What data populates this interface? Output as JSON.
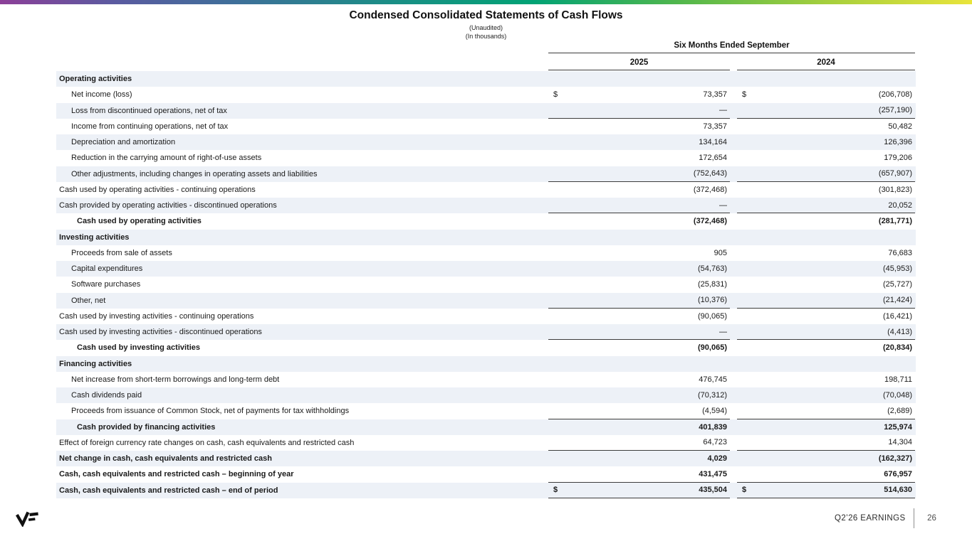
{
  "slide": {
    "title": "Condensed Consolidated Statements of Cash Flows",
    "subtitle_unaudited": "(Unaudited)",
    "subtitle_thousands": "(In thousands)"
  },
  "table": {
    "period_header": "Six Months Ended September",
    "col_years": [
      "2025",
      "2024"
    ],
    "rows": [
      {
        "label": "Operating activities",
        "indent": 0,
        "bold": true,
        "shaded": true,
        "v1": "",
        "v2": ""
      },
      {
        "label": "Net income (loss)",
        "indent": 1,
        "d1": "$",
        "v1": "73,357",
        "d2": "$",
        "v2": "(206,708)"
      },
      {
        "label": "Loss from discontinued operations, net of tax",
        "indent": 1,
        "shaded": true,
        "v1": "—",
        "v2": "(257,190)",
        "line": true
      },
      {
        "label": "Income from continuing operations, net of tax",
        "indent": 1,
        "v1": "73,357",
        "v2": "50,482"
      },
      {
        "label": "Depreciation and amortization",
        "indent": 1,
        "shaded": true,
        "v1": "134,164",
        "v2": "126,396"
      },
      {
        "label": "Reduction in the carrying amount of right-of-use assets",
        "indent": 1,
        "v1": "172,654",
        "v2": "179,206"
      },
      {
        "label": "Other adjustments, including changes in operating assets and liabilities",
        "indent": 1,
        "shaded": true,
        "v1": "(752,643)",
        "v2": "(657,907)",
        "line": true
      },
      {
        "label": "Cash used by operating activities - continuing operations",
        "indent": 0,
        "v1": "(372,468)",
        "v2": "(301,823)"
      },
      {
        "label": "Cash provided by operating activities - discontinued operations",
        "indent": 0,
        "shaded": true,
        "v1": "—",
        "v2": "20,052",
        "line": true
      },
      {
        "label": "Cash used by operating activities",
        "indent": 2,
        "bold": true,
        "v1": "(372,468)",
        "v2": "(281,771)"
      },
      {
        "label": "Investing activities",
        "indent": 0,
        "bold": true,
        "shaded": true,
        "v1": "",
        "v2": ""
      },
      {
        "label": "Proceeds from sale of assets",
        "indent": 1,
        "v1": "905",
        "v2": "76,683"
      },
      {
        "label": "Capital expenditures",
        "indent": 1,
        "shaded": true,
        "v1": "(54,763)",
        "v2": "(45,953)"
      },
      {
        "label": "Software purchases",
        "indent": 1,
        "v1": "(25,831)",
        "v2": "(25,727)"
      },
      {
        "label": "Other, net",
        "indent": 1,
        "shaded": true,
        "v1": "(10,376)",
        "v2": "(21,424)",
        "line": true
      },
      {
        "label": "Cash used by investing activities - continuing operations",
        "indent": 0,
        "v1": "(90,065)",
        "v2": "(16,421)"
      },
      {
        "label": "Cash used by investing activities - discontinued operations",
        "indent": 0,
        "shaded": true,
        "v1": "—",
        "v2": "(4,413)",
        "line": true
      },
      {
        "label": "Cash used by investing activities",
        "indent": 2,
        "bold": true,
        "v1": "(90,065)",
        "v2": "(20,834)"
      },
      {
        "label": "Financing activities",
        "indent": 0,
        "bold": true,
        "shaded": true,
        "v1": "",
        "v2": ""
      },
      {
        "label": "Net increase from short-term borrowings and long-term debt",
        "indent": 1,
        "v1": "476,745",
        "v2": "198,711"
      },
      {
        "label": "Cash dividends paid",
        "indent": 1,
        "shaded": true,
        "v1": "(70,312)",
        "v2": "(70,048)"
      },
      {
        "label": "Proceeds from issuance of Common Stock, net of payments for tax withholdings",
        "indent": 1,
        "v1": "(4,594)",
        "v2": "(2,689)",
        "line": true
      },
      {
        "label": "Cash provided by financing activities",
        "indent": 2,
        "bold": true,
        "shaded": true,
        "v1": "401,839",
        "v2": "125,974"
      },
      {
        "label": "Effect of foreign currency rate changes on cash, cash equivalents and restricted cash",
        "indent": 0,
        "v1": "64,723",
        "v2": "14,304",
        "line": true
      },
      {
        "label": "Net change in cash, cash equivalents and restricted cash",
        "indent": 0,
        "bold": true,
        "shaded": true,
        "v1": "4,029",
        "v2": "(162,327)"
      },
      {
        "label": "Cash, cash equivalents and restricted cash – beginning of year",
        "indent": 0,
        "bold": true,
        "v1": "431,475",
        "v2": "676,957",
        "line": true
      },
      {
        "label": "Cash, cash equivalents and restricted cash – end of period",
        "indent": 0,
        "bold": true,
        "shaded": true,
        "d1": "$",
        "v1": "435,504",
        "d2": "$",
        "v2": "514,630",
        "line": true
      }
    ]
  },
  "footer": {
    "label": "Q2’26 EARNINGS",
    "page": "26"
  },
  "colors": {
    "row_shade": "#edf1f7",
    "rule": "#3c3c3c",
    "gradient_left": "#8c3f98",
    "gradient_mid": "#02a375",
    "gradient_right": "#e9e43b"
  }
}
